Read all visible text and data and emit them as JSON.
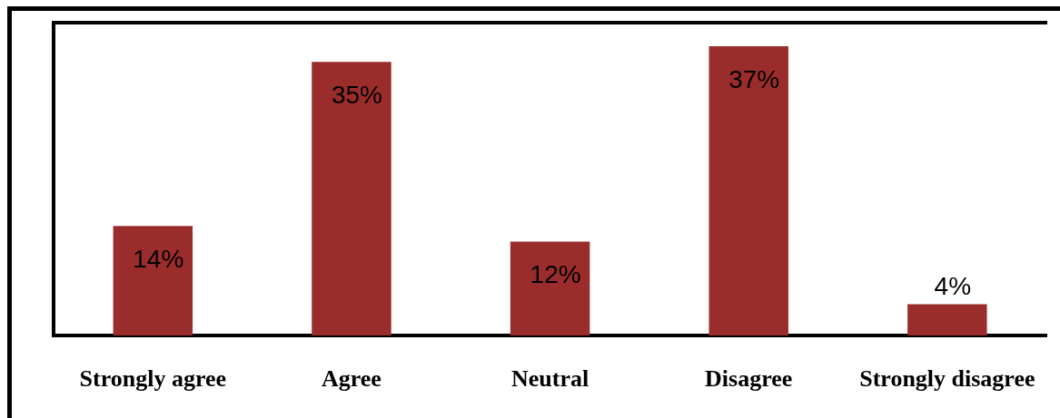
{
  "chart_data": {
    "type": "bar",
    "categories": [
      "Strongly agree",
      "Agree",
      "Neutral",
      "Disagree",
      "Strongly disagree"
    ],
    "values": [
      14,
      35,
      12,
      37,
      4
    ],
    "color": "#9a2c2b",
    "value_labels": [
      "14%",
      "35%",
      "12%",
      "37%",
      "4%"
    ],
    "tick_labels": "x"
  }
}
